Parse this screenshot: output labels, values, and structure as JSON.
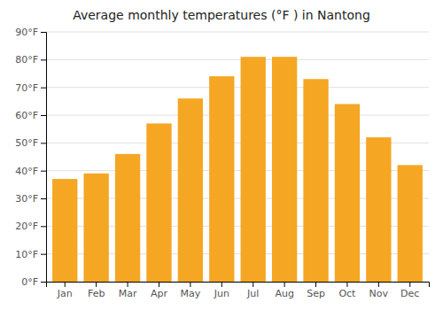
{
  "chart_data": {
    "type": "bar",
    "title": "Average monthly temperatures (°F ) in Nantong",
    "categories": [
      "Jan",
      "Feb",
      "Mar",
      "Apr",
      "May",
      "Jun",
      "Jul",
      "Aug",
      "Sep",
      "Oct",
      "Nov",
      "Dec"
    ],
    "values": [
      37,
      39,
      46,
      57,
      66,
      74,
      81,
      81,
      73,
      64,
      52,
      42
    ],
    "color": "#F5A623",
    "ylim": [
      0,
      90
    ],
    "yticks": [
      {
        "value": 0,
        "label": "0°F"
      },
      {
        "value": 10,
        "label": "10°F"
      },
      {
        "value": 20,
        "label": "20°F"
      },
      {
        "value": 30,
        "label": "30°F"
      },
      {
        "value": 40,
        "label": "40°F"
      },
      {
        "value": 50,
        "label": "50°F"
      },
      {
        "value": 60,
        "label": "60°F"
      },
      {
        "value": 70,
        "label": "70°F"
      },
      {
        "value": 80,
        "label": "80°F"
      },
      {
        "value": 90,
        "label": "90°F"
      }
    ],
    "grid": true
  }
}
